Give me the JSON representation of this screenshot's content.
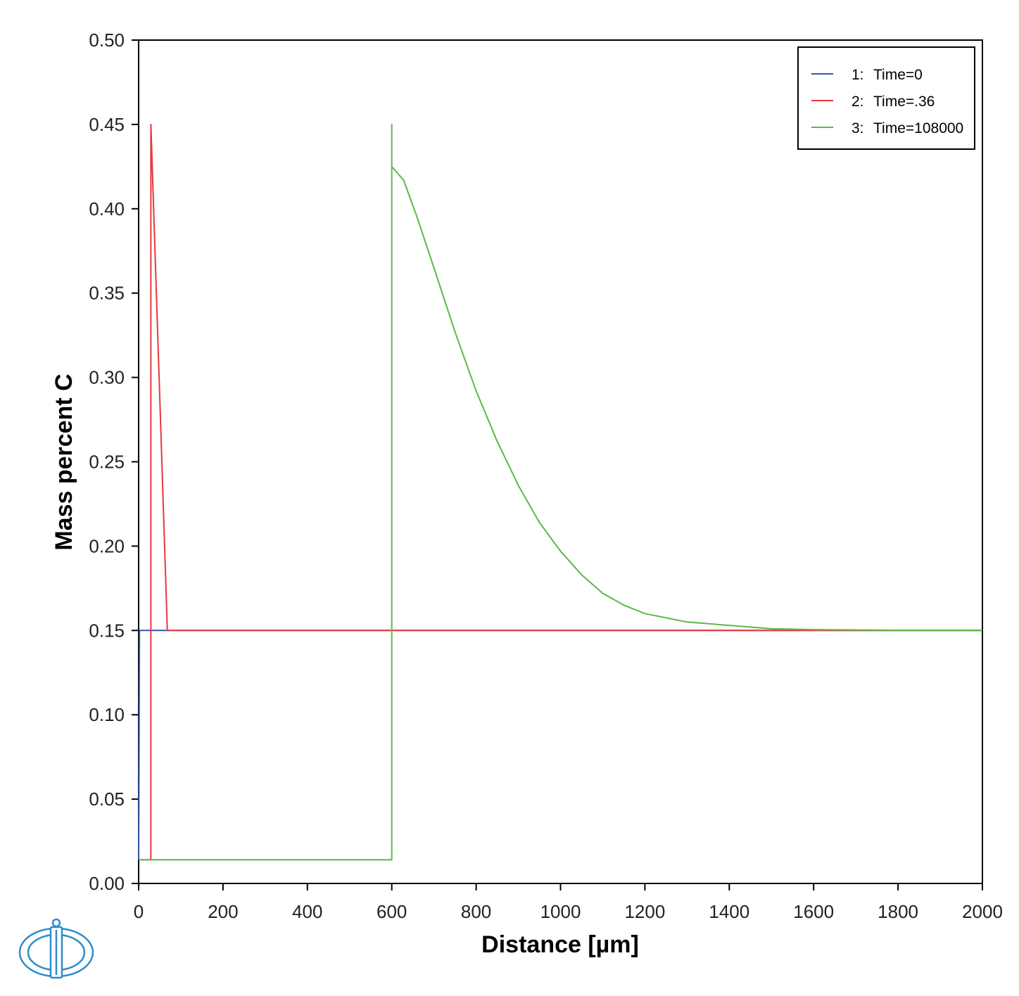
{
  "chart_data": {
    "type": "line",
    "xlabel": "Distance [µm]",
    "ylabel": "Mass percent C",
    "xlim": [
      0,
      2000
    ],
    "ylim": [
      0,
      0.5
    ],
    "x_ticks": [
      "0",
      "200",
      "400",
      "600",
      "800",
      "1000",
      "1200",
      "1400",
      "1600",
      "1800",
      "2000"
    ],
    "y_ticks": [
      "0.00",
      "0.05",
      "0.10",
      "0.15",
      "0.20",
      "0.25",
      "0.30",
      "0.35",
      "0.40",
      "0.45",
      "0.50"
    ],
    "grid": false,
    "legend_position": "top-right",
    "series": [
      {
        "name": "Time=0",
        "index": "1:",
        "color": "#3355aa",
        "points": [
          [
            0,
            0.014
          ],
          [
            2,
            0.15
          ],
          [
            2000,
            0.15
          ]
        ]
      },
      {
        "name": "Time=.36",
        "index": "2:",
        "color": "#e8383d",
        "points": [
          [
            0,
            0.014
          ],
          [
            29,
            0.014
          ],
          [
            29,
            0.45
          ],
          [
            68,
            0.15
          ],
          [
            2000,
            0.15
          ]
        ]
      },
      {
        "name": "Time=108000",
        "index": "3:",
        "color": "#5cb848",
        "points": [
          [
            0,
            0.014
          ],
          [
            600,
            0.014
          ],
          [
            600,
            0.45
          ],
          [
            600,
            0.425
          ],
          [
            628,
            0.417
          ],
          [
            660,
            0.395
          ],
          [
            700,
            0.365
          ],
          [
            750,
            0.327
          ],
          [
            800,
            0.292
          ],
          [
            850,
            0.262
          ],
          [
            900,
            0.236
          ],
          [
            950,
            0.214
          ],
          [
            1000,
            0.197
          ],
          [
            1050,
            0.183
          ],
          [
            1100,
            0.172
          ],
          [
            1150,
            0.165
          ],
          [
            1200,
            0.16
          ],
          [
            1300,
            0.155
          ],
          [
            1400,
            0.153
          ],
          [
            1500,
            0.151
          ],
          [
            1600,
            0.1505
          ],
          [
            1800,
            0.1501
          ],
          [
            2000,
            0.15
          ]
        ]
      }
    ]
  },
  "colors": {
    "axis": "#000000",
    "logo": "#2f8ccc"
  },
  "logo_icon": "thermo-calc-logo-icon"
}
